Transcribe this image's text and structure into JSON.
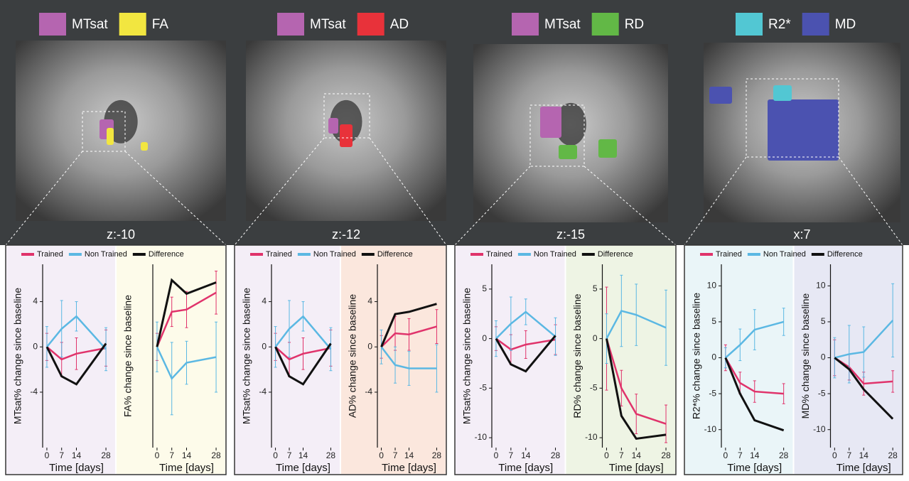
{
  "brain_panels": [
    {
      "regions": [
        {
          "label": "MTsat",
          "color": "#b565b0"
        },
        {
          "label": "FA",
          "color": "#f2e640"
        }
      ],
      "slice": "z:-10"
    },
    {
      "regions": [
        {
          "label": "MTsat",
          "color": "#b565b0"
        },
        {
          "label": "AD",
          "color": "#e8323a"
        }
      ],
      "slice": "z:-12"
    },
    {
      "regions": [
        {
          "label": "MTsat",
          "color": "#b565b0"
        },
        {
          "label": "RD",
          "color": "#62b846"
        }
      ],
      "slice": "z:-15"
    },
    {
      "regions": [
        {
          "label": "R2*",
          "color": "#52c7d3"
        },
        {
          "label": "MD",
          "color": "#4b52b0"
        }
      ],
      "slice": "x:7"
    }
  ],
  "chart_data": [
    {
      "type": "line",
      "x": [
        0,
        7,
        14,
        28
      ],
      "xlim": [
        -2,
        30
      ],
      "xticks": [
        0,
        7,
        14,
        28
      ],
      "xlabel": "Time [days]",
      "legend": [
        {
          "name": "Trained",
          "color": "#e0336b"
        },
        {
          "name": "Non Trained",
          "color": "#5bb8e3"
        },
        {
          "name": "Difference",
          "color": "#111111"
        }
      ],
      "panels": [
        {
          "ylabel": "MTsat% change since baseline",
          "background": "#f4eef7",
          "ylim": [
            -8.9,
            7.3
          ],
          "yticks": [
            -4,
            0,
            4
          ],
          "series": [
            {
              "values": [
                0,
                -1.1,
                -0.6,
                -0.1
              ],
              "errors": [
                1.2,
                1.5,
                1.4,
                1.6
              ]
            },
            {
              "values": [
                0,
                1.6,
                2.7,
                -0.2
              ],
              "errors": [
                1.8,
                2.5,
                1.3,
                1.9
              ]
            },
            {
              "values": [
                0,
                -2.6,
                -3.3,
                0.3
              ]
            }
          ]
        },
        {
          "ylabel": "FA% change since baseline",
          "background": "#fdfbea",
          "ylim": [
            -8.9,
            7.3
          ],
          "series": [
            {
              "values": [
                0,
                3.1,
                3.3,
                4.8
              ],
              "errors": [
                1.2,
                1.3,
                1.6,
                1.9
              ]
            },
            {
              "values": [
                0,
                -2.8,
                -1.4,
                -0.9
              ],
              "errors": [
                2.2,
                3.2,
                1.9,
                3.1
              ]
            },
            {
              "values": [
                0,
                5.9,
                4.7,
                5.7
              ]
            }
          ]
        }
      ]
    },
    {
      "type": "line",
      "x": [
        0,
        7,
        14,
        28
      ],
      "xlim": [
        -2,
        30
      ],
      "xticks": [
        0,
        7,
        14,
        28
      ],
      "xlabel": "Time [days]",
      "legend": [
        {
          "name": "Trained",
          "color": "#e0336b"
        },
        {
          "name": "Non Trained",
          "color": "#5bb8e3"
        },
        {
          "name": "Difference",
          "color": "#111111"
        }
      ],
      "panels": [
        {
          "ylabel": "MTsat% change since baseline",
          "background": "#f4eef7",
          "ylim": [
            -8.9,
            7.3
          ],
          "yticks": [
            -4,
            0,
            4
          ],
          "series": [
            {
              "values": [
                0,
                -1.1,
                -0.6,
                -0.1
              ],
              "errors": [
                1.2,
                1.5,
                1.4,
                1.6
              ]
            },
            {
              "values": [
                0,
                1.6,
                2.7,
                -0.2
              ],
              "errors": [
                1.8,
                2.5,
                1.3,
                1.9
              ]
            },
            {
              "values": [
                0,
                -2.6,
                -3.3,
                0.3
              ]
            }
          ]
        },
        {
          "ylabel": "AD% change since baseline",
          "background": "#fbe7dd",
          "ylim": [
            -8.9,
            7.3
          ],
          "yticks": [
            -4,
            0,
            4
          ],
          "series": [
            {
              "values": [
                0,
                1.2,
                1.1,
                1.8
              ],
              "errors": [
                1.0,
                1.5,
                1.4,
                1.5
              ]
            },
            {
              "values": [
                0,
                -1.6,
                -1.9,
                -1.9
              ],
              "errors": [
                1.5,
                1.6,
                1.5,
                2.1
              ]
            },
            {
              "values": [
                0,
                2.9,
                3.1,
                3.8
              ]
            }
          ]
        }
      ]
    },
    {
      "type": "line",
      "x": [
        0,
        7,
        14,
        28
      ],
      "xlim": [
        -2,
        30
      ],
      "xticks": [
        0,
        7,
        14,
        28
      ],
      "xlabel": "Time [days]",
      "legend": [
        {
          "name": "Trained",
          "color": "#e0336b"
        },
        {
          "name": "Non Trained",
          "color": "#5bb8e3"
        },
        {
          "name": "Difference",
          "color": "#111111"
        }
      ],
      "panels": [
        {
          "ylabel": "MTsat% change since baseline",
          "background": "#f4eef7",
          "ylim": [
            -11,
            7.5
          ],
          "yticks": [
            -10,
            -5,
            0,
            5
          ],
          "series": [
            {
              "values": [
                0,
                -1.1,
                -0.6,
                -0.1
              ],
              "errors": [
                1.2,
                1.5,
                1.4,
                1.5
              ]
            },
            {
              "values": [
                0,
                1.5,
                2.7,
                0.2
              ],
              "errors": [
                1.8,
                2.7,
                1.3,
                1.9
              ]
            },
            {
              "values": [
                0,
                -2.6,
                -3.3,
                0.3
              ]
            }
          ]
        },
        {
          "ylabel": "RD% change since baseline",
          "background": "#eef4e4",
          "ylim": [
            -11,
            7.5
          ],
          "yticks": [
            -10,
            -5,
            0,
            5
          ],
          "series": [
            {
              "values": [
                0,
                -5,
                -7.6,
                -8.6
              ],
              "errors": [
                5.2,
                1.8,
                2.0,
                1.9
              ]
            },
            {
              "values": [
                0,
                2.8,
                2.4,
                1.1
              ],
              "errors": [
                2.5,
                3.6,
                3.1,
                3.8
              ]
            },
            {
              "values": [
                0,
                -7.8,
                -10.1,
                -9.7
              ]
            }
          ]
        }
      ]
    },
    {
      "type": "line",
      "x": [
        0,
        7,
        14,
        28
      ],
      "xlim": [
        -2,
        30
      ],
      "xticks": [
        0,
        7,
        14,
        28
      ],
      "xlabel": "Time [days]",
      "legend": [
        {
          "name": "Trained",
          "color": "#e0336b"
        },
        {
          "name": "Non Trained",
          "color": "#5bb8e3"
        },
        {
          "name": "Difference",
          "color": "#111111"
        }
      ],
      "panels": [
        {
          "ylabel": "R2*% change since baseline",
          "background": "#eaf5f8",
          "ylim": [
            -12.5,
            13
          ],
          "yticks": [
            -10,
            -5,
            0,
            5,
            10
          ],
          "series": [
            {
              "values": [
                0,
                -3.5,
                -4.7,
                -5
              ],
              "errors": [
                1.8,
                1.5,
                1.5,
                1.4
              ]
            },
            {
              "values": [
                0,
                1.8,
                3.9,
                5
              ],
              "errors": [
                1.4,
                2.2,
                2.8,
                1.9
              ]
            },
            {
              "values": [
                0,
                -5,
                -8.7,
                -10.1
              ]
            }
          ]
        },
        {
          "ylabel": "MD% change since baseline",
          "background": "#e7e8f4",
          "ylim": [
            -12.5,
            13
          ],
          "yticks": [
            -10,
            -5,
            0,
            5,
            10
          ],
          "series": [
            {
              "values": [
                0,
                -1.3,
                -3.6,
                -3.3
              ],
              "errors": [
                2.5,
                1.8,
                1.6,
                1.5
              ]
            },
            {
              "values": [
                0,
                0.5,
                0.8,
                5.2
              ],
              "errors": [
                2.8,
                4.0,
                3.5,
                5.1
              ]
            },
            {
              "values": [
                0,
                -1.6,
                -4.4,
                -8.5
              ]
            }
          ]
        }
      ]
    }
  ]
}
